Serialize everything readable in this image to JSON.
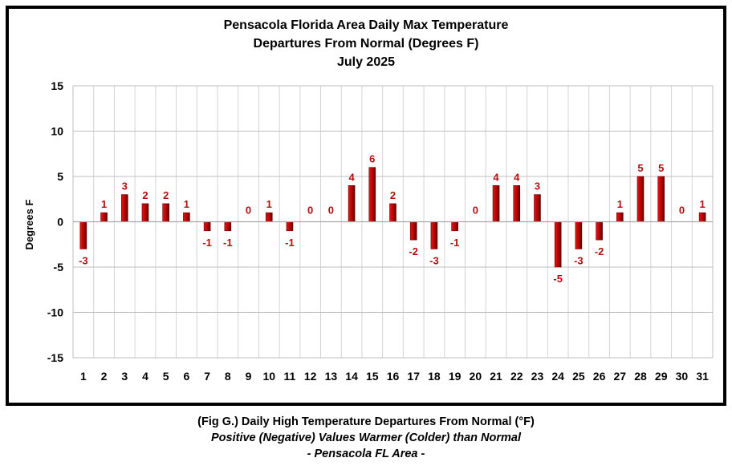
{
  "chart_data": {
    "type": "bar",
    "title": [
      "Pensacola Florida Area Daily Max Temperature",
      "Departures From Normal (Degrees F)",
      "July 2025"
    ],
    "ylabel": "Degrees F",
    "xlabel": "",
    "categories": [
      "1",
      "2",
      "3",
      "4",
      "5",
      "6",
      "7",
      "8",
      "9",
      "10",
      "11",
      "12",
      "13",
      "14",
      "15",
      "16",
      "17",
      "18",
      "19",
      "20",
      "21",
      "22",
      "23",
      "24",
      "25",
      "26",
      "27",
      "28",
      "29",
      "30",
      "31"
    ],
    "values": [
      -3,
      1,
      3,
      2,
      2,
      1,
      -1,
      -1,
      0,
      1,
      -1,
      0,
      0,
      4,
      6,
      2,
      -2,
      -3,
      -1,
      0,
      4,
      4,
      3,
      -5,
      -3,
      -2,
      1,
      5,
      5,
      0,
      1
    ],
    "ylim": [
      -15,
      15
    ],
    "yticks": [
      15,
      10,
      5,
      0,
      -5,
      -10,
      -15
    ],
    "grid": true,
    "legend": "none",
    "bar_color": "#c00000"
  },
  "caption": {
    "line1": "(Fig G.) Daily High Temperature Departures From Normal (°F)",
    "line2": "Positive (Negative) Values Warmer (Colder) than Normal",
    "line3": "- Pensacola FL Area -"
  }
}
